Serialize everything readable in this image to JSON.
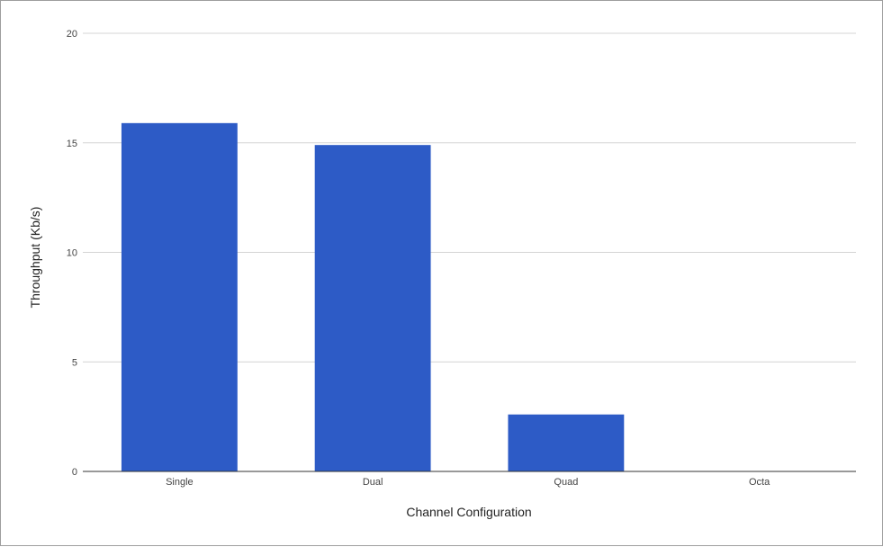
{
  "chart_data": {
    "type": "bar",
    "categories": [
      "Single",
      "Dual",
      "Quad",
      "Octa"
    ],
    "values": [
      15.9,
      14.9,
      2.6,
      0
    ],
    "title": "",
    "xlabel": "Channel Configuration",
    "ylabel": "Throughput (Kb/s)",
    "ylim": [
      0,
      20
    ],
    "yticks": [
      "0",
      "5",
      "10",
      "15",
      "20"
    ],
    "grid": true,
    "legend": "none",
    "bar_color": "#2d5bc6"
  }
}
